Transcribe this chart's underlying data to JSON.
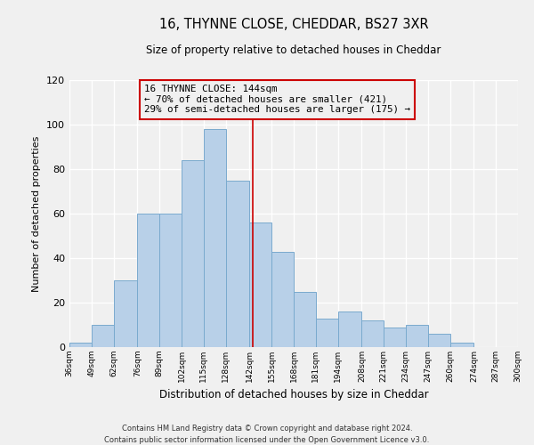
{
  "title": "16, THYNNE CLOSE, CHEDDAR, BS27 3XR",
  "subtitle": "Size of property relative to detached houses in Cheddar",
  "xlabel": "Distribution of detached houses by size in Cheddar",
  "ylabel": "Number of detached properties",
  "bar_color": "#b8d0e8",
  "bar_edge_color": "#7aaace",
  "bins": [
    36,
    49,
    62,
    76,
    89,
    102,
    115,
    128,
    142,
    155,
    168,
    181,
    194,
    208,
    221,
    234,
    247,
    260,
    274,
    287,
    300
  ],
  "bin_labels": [
    "36sqm",
    "49sqm",
    "62sqm",
    "76sqm",
    "89sqm",
    "102sqm",
    "115sqm",
    "128sqm",
    "142sqm",
    "155sqm",
    "168sqm",
    "181sqm",
    "194sqm",
    "208sqm",
    "221sqm",
    "234sqm",
    "247sqm",
    "260sqm",
    "274sqm",
    "287sqm",
    "300sqm"
  ],
  "counts": [
    2,
    10,
    30,
    60,
    60,
    84,
    98,
    75,
    56,
    43,
    25,
    13,
    16,
    12,
    9,
    10,
    6,
    2,
    0,
    0
  ],
  "property_value": 144,
  "property_label": "16 THYNNE CLOSE: 144sqm",
  "annotation_line1": "← 70% of detached houses are smaller (421)",
  "annotation_line2": "29% of semi-detached houses are larger (175) →",
  "vline_color": "#cc0000",
  "annotation_box_edge_color": "#cc0000",
  "background_color": "#f0f0f0",
  "grid_color": "#ffffff",
  "ylim": [
    0,
    120
  ],
  "yticks": [
    0,
    20,
    40,
    60,
    80,
    100,
    120
  ],
  "footnote1": "Contains HM Land Registry data © Crown copyright and database right 2024.",
  "footnote2": "Contains public sector information licensed under the Open Government Licence v3.0."
}
